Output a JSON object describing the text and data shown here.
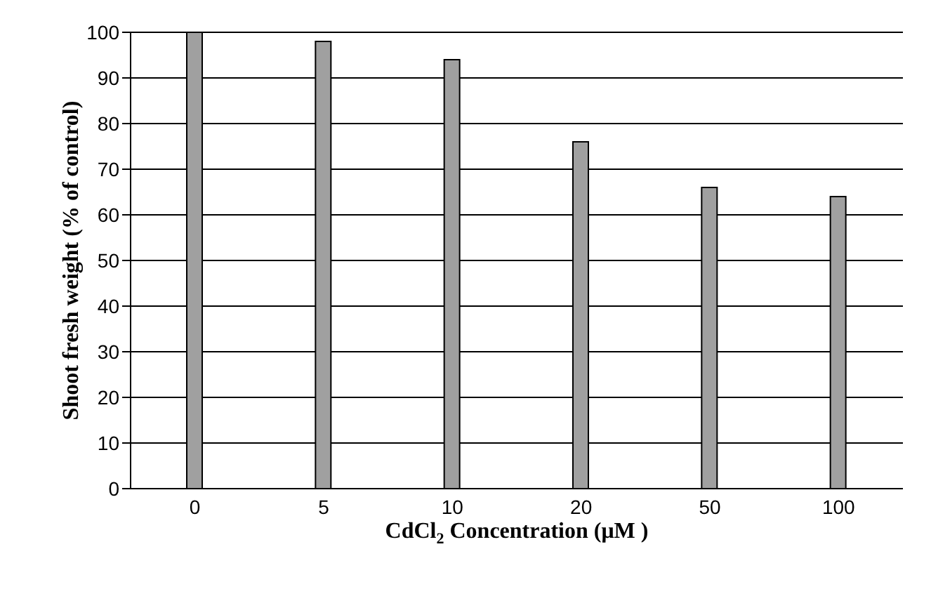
{
  "chart_data": {
    "type": "bar",
    "xlabel": "CdCl$_{2}$ Concentration (μM )",
    "ylabel": "Shoot fresh weight (% of control)",
    "categories": [
      "0",
      "5",
      "10",
      "20",
      "50",
      "100"
    ],
    "values": [
      100,
      98,
      94,
      76,
      66,
      64
    ],
    "color": "#a0a0a0",
    "ylim": [
      0,
      100
    ],
    "yticks": [
      0,
      10,
      20,
      30,
      40,
      50,
      60,
      70,
      80,
      90,
      100
    ],
    "grid": "y"
  }
}
